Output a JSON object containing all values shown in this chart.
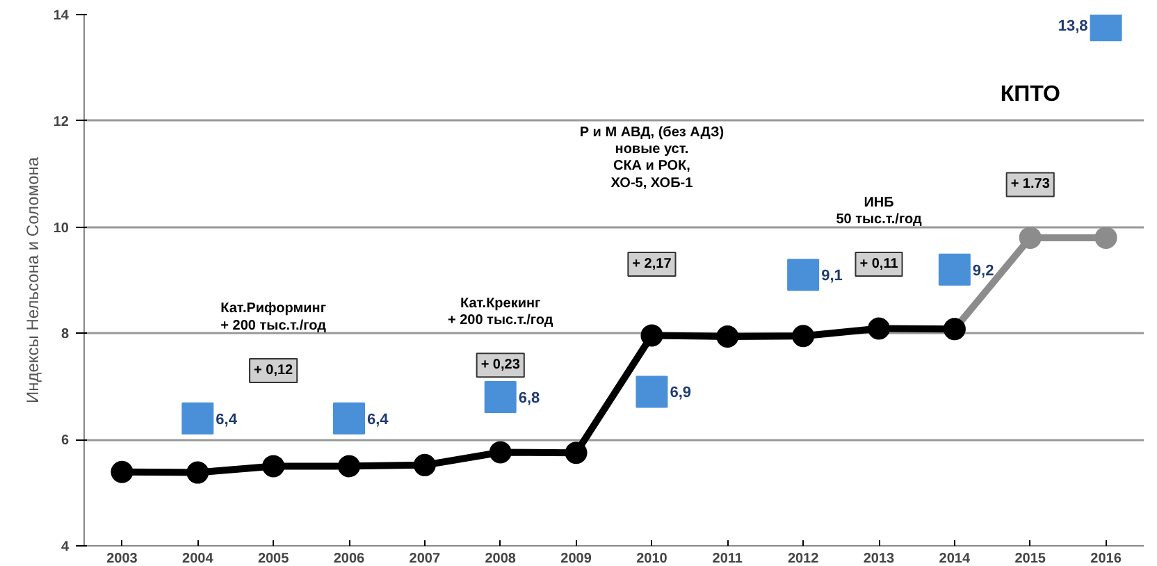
{
  "chart_data": {
    "type": "line",
    "ylabel": "Индексы Нельсона и Соломона",
    "categories": [
      "2003",
      "2004",
      "2005",
      "2006",
      "2007",
      "2008",
      "2009",
      "2010",
      "2011",
      "2012",
      "2013",
      "2014",
      "2015",
      "2016"
    ],
    "ylim": [
      4,
      14
    ],
    "yticks": [
      4,
      6,
      8,
      10,
      12,
      14
    ],
    "grid": "y",
    "series": [
      {
        "color": "#8c8c8c",
        "marker": "circle",
        "values": [
          null,
          null,
          null,
          null,
          null,
          null,
          null,
          null,
          null,
          null,
          null,
          8.08,
          9.8,
          9.8
        ]
      },
      {
        "color": "#000000",
        "marker": "circle",
        "values": [
          5.39,
          5.38,
          5.5,
          5.5,
          5.52,
          5.76,
          5.75,
          7.96,
          7.94,
          7.95,
          8.09,
          8.08,
          null,
          null
        ]
      },
      {
        "type": "scatter",
        "color": "#4a90d9",
        "marker": "square",
        "values": [
          null,
          6.4,
          null,
          6.4,
          null,
          6.8,
          null,
          6.9,
          null,
          9.1,
          null,
          9.2,
          null,
          13.8
        ],
        "value_labels": [
          null,
          "6,4",
          null,
          "6,4",
          null,
          "6,8",
          null,
          "6,9",
          null,
          "9,1",
          null,
          "9,2",
          null,
          "13,8"
        ]
      }
    ],
    "annotations": [
      "Кат.Риформинг\n+ 200 тыс.т./год",
      "+ 0,12",
      "Кат.Крекинг\n+ 200 тыс.т./год",
      "+ 0,23",
      "Р и М АВД, (без АДЗ)\nновые уст.\nСКА и РОК,\nХО-5, ХОБ-1",
      "+ 2,17",
      "ИНБ\n50 тыс.т./год",
      "+ 0,11",
      "КПТО",
      "+ 1.73"
    ]
  }
}
